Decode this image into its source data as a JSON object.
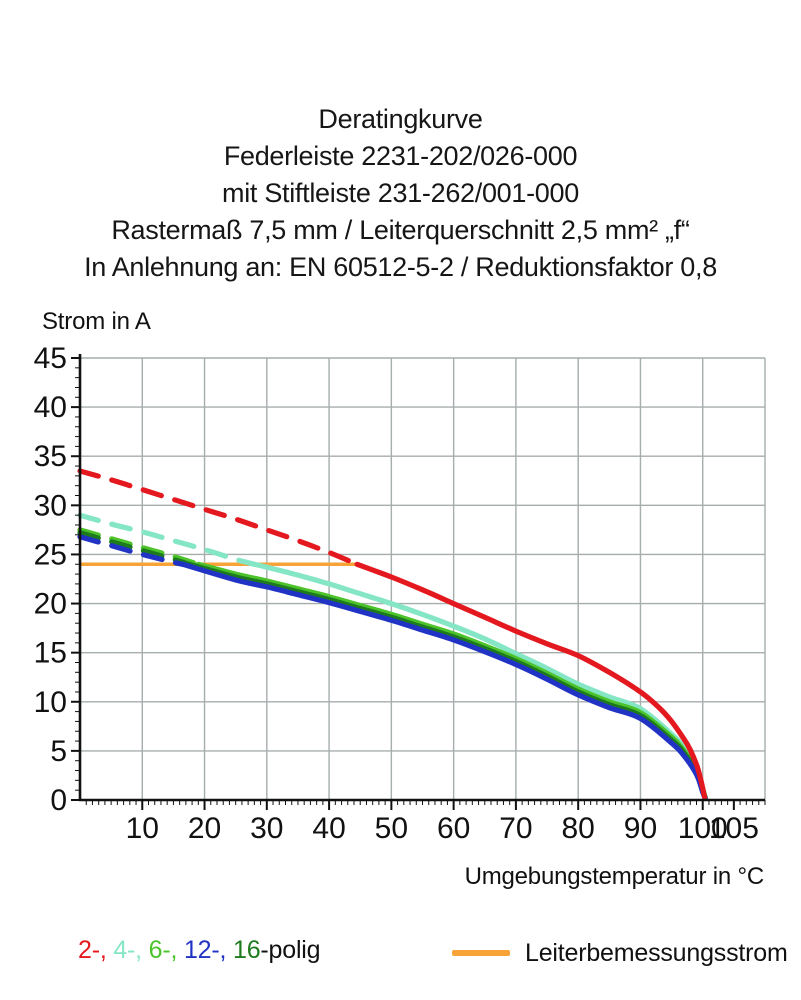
{
  "title": {
    "lines": [
      "Deratingkurve",
      "Federleiste 2231-202/026-000",
      "mit Stiftleiste 231-262/001-000",
      "Rastermaß 7,5 mm / Leiterquerschnitt 2,5 mm² „f“",
      "In Anlehnung an: EN 60512-5-2 / Reduktionsfaktor 0,8"
    ]
  },
  "chart_data": {
    "type": "line",
    "title": "Deratingkurve Federleiste 2231-202/026-000 mit Stiftleiste 231-262/001-000",
    "xlabel": "Umgebungstemperatur in °C",
    "ylabel": "Strom in A",
    "xlim": [
      0,
      110
    ],
    "ylim": [
      0,
      45
    ],
    "grid": true,
    "x_tick_labels": [
      "10",
      "20",
      "30",
      "40",
      "50",
      "60",
      "70",
      "80",
      "90",
      "100",
      "105"
    ],
    "y_tick_labels": [
      "0",
      "5",
      "10",
      "15",
      "20",
      "25",
      "30",
      "35",
      "40",
      "45"
    ],
    "grid_color": "#a6adad",
    "axis_color": "#111111",
    "dash_note": "curves are dashed above the conductor rated current of 24 A",
    "rated_current_line": {
      "label": "Leiterbemessungsstrom",
      "value": 24,
      "x_start": 0,
      "x_end": 44.5,
      "color": "#f7a338"
    },
    "series": [
      {
        "name": "4-polig",
        "color": "#85e6c6",
        "dash_until_x": 28,
        "points": [
          [
            0,
            29.0
          ],
          [
            5,
            28.1
          ],
          [
            10,
            27.3
          ],
          [
            15,
            26.4
          ],
          [
            20,
            25.5
          ],
          [
            25,
            24.5
          ],
          [
            28,
            24.0
          ],
          [
            30,
            23.7
          ],
          [
            35,
            22.9
          ],
          [
            40,
            22.0
          ],
          [
            45,
            21.0
          ],
          [
            50,
            20.0
          ],
          [
            55,
            18.9
          ],
          [
            60,
            17.7
          ],
          [
            65,
            16.4
          ],
          [
            70,
            14.9
          ],
          [
            75,
            13.4
          ],
          [
            80,
            11.8
          ],
          [
            85,
            10.5
          ],
          [
            90,
            9.3
          ],
          [
            95,
            6.7
          ],
          [
            97,
            5.3
          ],
          [
            99,
            3.2
          ],
          [
            100,
            1.2
          ],
          [
            100.4,
            0.3
          ]
        ]
      },
      {
        "name": "6-polig",
        "color": "#4cc32a",
        "dash_until_x": 19,
        "points": [
          [
            0,
            27.5
          ],
          [
            5,
            26.6
          ],
          [
            10,
            25.7
          ],
          [
            15,
            24.8
          ],
          [
            19,
            24.0
          ],
          [
            25,
            23.0
          ],
          [
            30,
            22.3
          ],
          [
            35,
            21.5
          ],
          [
            40,
            20.7
          ],
          [
            45,
            19.8
          ],
          [
            50,
            18.9
          ],
          [
            55,
            17.9
          ],
          [
            60,
            16.9
          ],
          [
            65,
            15.7
          ],
          [
            70,
            14.4
          ],
          [
            75,
            12.9
          ],
          [
            80,
            11.3
          ],
          [
            85,
            10.0
          ],
          [
            90,
            8.9
          ],
          [
            95,
            6.4
          ],
          [
            97,
            5.0
          ],
          [
            99,
            3.0
          ],
          [
            100,
            1.0
          ],
          [
            100.4,
            0.25
          ]
        ]
      },
      {
        "name": "16-polig",
        "color": "#1d7a1d",
        "dash_until_x": 17.5,
        "points": [
          [
            0,
            27.2
          ],
          [
            5,
            26.3
          ],
          [
            10,
            25.4
          ],
          [
            15,
            24.5
          ],
          [
            17.5,
            24.0
          ],
          [
            25,
            22.7
          ],
          [
            30,
            22.0
          ],
          [
            35,
            21.2
          ],
          [
            40,
            20.4
          ],
          [
            45,
            19.5
          ],
          [
            50,
            18.6
          ],
          [
            55,
            17.6
          ],
          [
            60,
            16.6
          ],
          [
            65,
            15.4
          ],
          [
            70,
            14.1
          ],
          [
            75,
            12.6
          ],
          [
            80,
            11.0
          ],
          [
            85,
            9.7
          ],
          [
            90,
            8.6
          ],
          [
            95,
            6.1
          ],
          [
            97,
            4.8
          ],
          [
            99,
            2.8
          ],
          [
            100,
            0.9
          ],
          [
            100.4,
            0.2
          ]
        ]
      },
      {
        "name": "12-polig",
        "color": "#2133c4",
        "dash_until_x": 16.5,
        "points": [
          [
            0,
            26.8
          ],
          [
            5,
            25.9
          ],
          [
            10,
            25.0
          ],
          [
            15,
            24.2
          ],
          [
            16.5,
            24.0
          ],
          [
            25,
            22.4
          ],
          [
            30,
            21.7
          ],
          [
            35,
            20.9
          ],
          [
            40,
            20.1
          ],
          [
            45,
            19.2
          ],
          [
            50,
            18.3
          ],
          [
            55,
            17.3
          ],
          [
            60,
            16.3
          ],
          [
            65,
            15.1
          ],
          [
            70,
            13.8
          ],
          [
            75,
            12.3
          ],
          [
            80,
            10.7
          ],
          [
            85,
            9.4
          ],
          [
            90,
            8.3
          ],
          [
            95,
            5.8
          ],
          [
            97,
            4.5
          ],
          [
            99,
            2.6
          ],
          [
            100,
            0.8
          ],
          [
            100.4,
            0.15
          ]
        ]
      },
      {
        "name": "2-polig",
        "color": "#e4191f",
        "dash_until_x": 44.5,
        "points": [
          [
            0,
            33.5
          ],
          [
            5,
            32.6
          ],
          [
            10,
            31.6
          ],
          [
            15,
            30.6
          ],
          [
            20,
            29.6
          ],
          [
            25,
            28.6
          ],
          [
            30,
            27.5
          ],
          [
            35,
            26.4
          ],
          [
            40,
            25.2
          ],
          [
            44.5,
            24.0
          ],
          [
            50,
            22.7
          ],
          [
            55,
            21.4
          ],
          [
            60,
            20.0
          ],
          [
            65,
            18.6
          ],
          [
            70,
            17.2
          ],
          [
            75,
            15.9
          ],
          [
            80,
            14.7
          ],
          [
            85,
            13.0
          ],
          [
            90,
            11.0
          ],
          [
            93,
            9.4
          ],
          [
            95,
            8.0
          ],
          [
            97,
            6.2
          ],
          [
            98,
            5.1
          ],
          [
            99,
            3.6
          ],
          [
            99.6,
            2.3
          ],
          [
            100.3,
            0.3
          ]
        ]
      }
    ]
  },
  "axes": {
    "y_title": "Strom in A",
    "x_title": "Umgebungstemperatur in °C"
  },
  "legend": {
    "poles": {
      "segments": [
        {
          "text": "2-,",
          "color": "#e4191f"
        },
        {
          "text": " 4-,",
          "color": "#85e6c6"
        },
        {
          "text": " 6-,",
          "color": "#4cc32a"
        },
        {
          "text": " 12-,",
          "color": "#2133c4"
        },
        {
          "text": " 16",
          "color": "#1d7a1d"
        },
        {
          "text": "-polig",
          "color": "#111111"
        }
      ]
    },
    "rated": {
      "label": "Leiterbemessungsstrom",
      "color": "#f7a338"
    }
  }
}
